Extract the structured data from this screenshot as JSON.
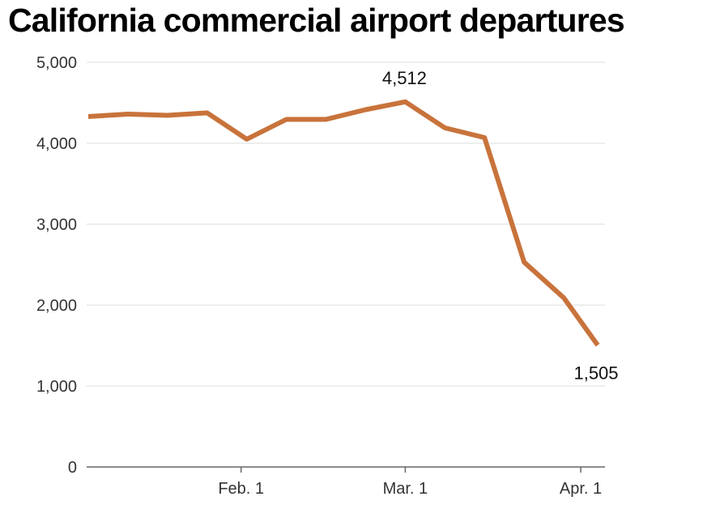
{
  "chart_data": {
    "type": "line",
    "title": "California commercial airport departures",
    "xlabel": "",
    "ylabel": "",
    "ylim": [
      0,
      5000
    ],
    "yticks": [
      0,
      1000,
      2000,
      3000,
      4000,
      5000
    ],
    "ytick_labels": [
      "0",
      "1,000",
      "2,000",
      "3,000",
      "4,000",
      "5,000"
    ],
    "xlim": [
      "2020-01-05",
      "2020-04-05"
    ],
    "xticks": [
      "2020-02-01",
      "2020-03-01",
      "2020-04-01"
    ],
    "xtick_labels": [
      "Feb. 1",
      "Mar. 1",
      "Apr. 1"
    ],
    "grid": true,
    "line_color": "#c8733b",
    "series": [
      {
        "x": [
          "2020-01-05",
          "2020-01-12",
          "2020-01-19",
          "2020-01-26",
          "2020-02-02",
          "2020-02-09",
          "2020-02-16",
          "2020-02-23",
          "2020-03-01",
          "2020-03-08",
          "2020-03-15",
          "2020-03-22",
          "2020-03-29",
          "2020-04-04"
        ],
        "values": [
          4330,
          4360,
          4345,
          4375,
          4050,
          4295,
          4295,
          4415,
          4512,
          4190,
          4070,
          2530,
          2090,
          1505
        ]
      }
    ],
    "annotations": [
      {
        "text": "4,512",
        "x": "2020-03-01",
        "y": 4512,
        "position": "above"
      },
      {
        "text": "1,505",
        "x": "2020-04-04",
        "y": 1505,
        "position": "below"
      }
    ]
  }
}
